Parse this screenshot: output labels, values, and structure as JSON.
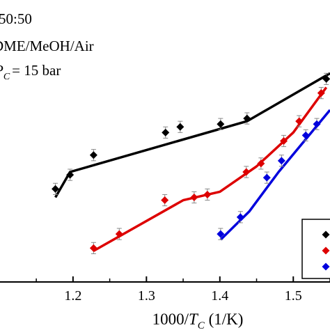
{
  "chart_data": {
    "type": "scatter",
    "title": "",
    "annotation_lines": [
      "50:50",
      "DME/MeOH/Air",
      "= 15 bar"
    ],
    "annotation_var": {
      "main": "P",
      "sub": "C"
    },
    "xlabel": {
      "prefix": "1000/",
      "var": "T",
      "sub": "C",
      "suffix": " (1/K)"
    },
    "ylabel": "",
    "xlim": [
      1.1,
      1.55
    ],
    "ylim": [
      0,
      10
    ],
    "x_ticks": [
      1.2,
      1.3,
      1.4,
      1.5
    ],
    "x_tick_labels": [
      "1.2",
      "1.3",
      "1.4",
      "1.5"
    ],
    "grid": false,
    "legend": "bottom-right",
    "series": [
      {
        "color": "#000000",
        "points": [
          {
            "x": 1.176,
            "y": 3.3,
            "err": 0.2
          },
          {
            "x": 1.196,
            "y": 3.8,
            "err": 0.2
          },
          {
            "x": 1.228,
            "y": 4.5,
            "err": 0.2
          },
          {
            "x": 1.326,
            "y": 5.3,
            "err": 0.2
          },
          {
            "x": 1.346,
            "y": 5.5,
            "err": 0.2
          },
          {
            "x": 1.401,
            "y": 5.6,
            "err": 0.2
          },
          {
            "x": 1.437,
            "y": 5.8,
            "err": 0.2
          },
          {
            "x": 1.545,
            "y": 7.2,
            "err": 0.2
          }
        ],
        "fit": [
          [
            1.176,
            3.0
          ],
          [
            1.196,
            3.9
          ],
          [
            1.437,
            5.7
          ],
          [
            1.55,
            7.4
          ]
        ]
      },
      {
        "color": "#dd0000",
        "points": [
          {
            "x": 1.228,
            "y": 1.2,
            "err": 0.2
          },
          {
            "x": 1.263,
            "y": 1.7,
            "err": 0.2
          },
          {
            "x": 1.325,
            "y": 2.9,
            "err": 0.2
          },
          {
            "x": 1.365,
            "y": 3.0,
            "err": 0.2
          },
          {
            "x": 1.383,
            "y": 3.1,
            "err": 0.2
          },
          {
            "x": 1.436,
            "y": 3.9,
            "err": 0.2
          },
          {
            "x": 1.456,
            "y": 4.2,
            "err": 0.2
          },
          {
            "x": 1.487,
            "y": 5.0,
            "err": 0.2
          },
          {
            "x": 1.508,
            "y": 5.7,
            "err": 0.2
          },
          {
            "x": 1.538,
            "y": 6.7,
            "err": 0.2
          }
        ],
        "fit": [
          [
            1.228,
            1.1
          ],
          [
            1.35,
            2.9
          ],
          [
            1.4,
            3.2
          ],
          [
            1.45,
            4.1
          ],
          [
            1.5,
            5.3
          ],
          [
            1.545,
            6.9
          ]
        ]
      },
      {
        "color": "#0000dd",
        "points": [
          {
            "x": 1.401,
            "y": 1.7,
            "err": 0.2
          },
          {
            "x": 1.428,
            "y": 2.3,
            "err": 0.2
          },
          {
            "x": 1.464,
            "y": 3.7,
            "err": 0.2
          },
          {
            "x": 1.484,
            "y": 4.3,
            "err": 0.2
          },
          {
            "x": 1.517,
            "y": 5.2,
            "err": 0.2
          },
          {
            "x": 1.532,
            "y": 5.6,
            "err": 0.2
          }
        ],
        "fit": [
          [
            1.401,
            1.5
          ],
          [
            1.44,
            2.5
          ],
          [
            1.48,
            3.9
          ],
          [
            1.55,
            6.1
          ]
        ]
      }
    ]
  }
}
